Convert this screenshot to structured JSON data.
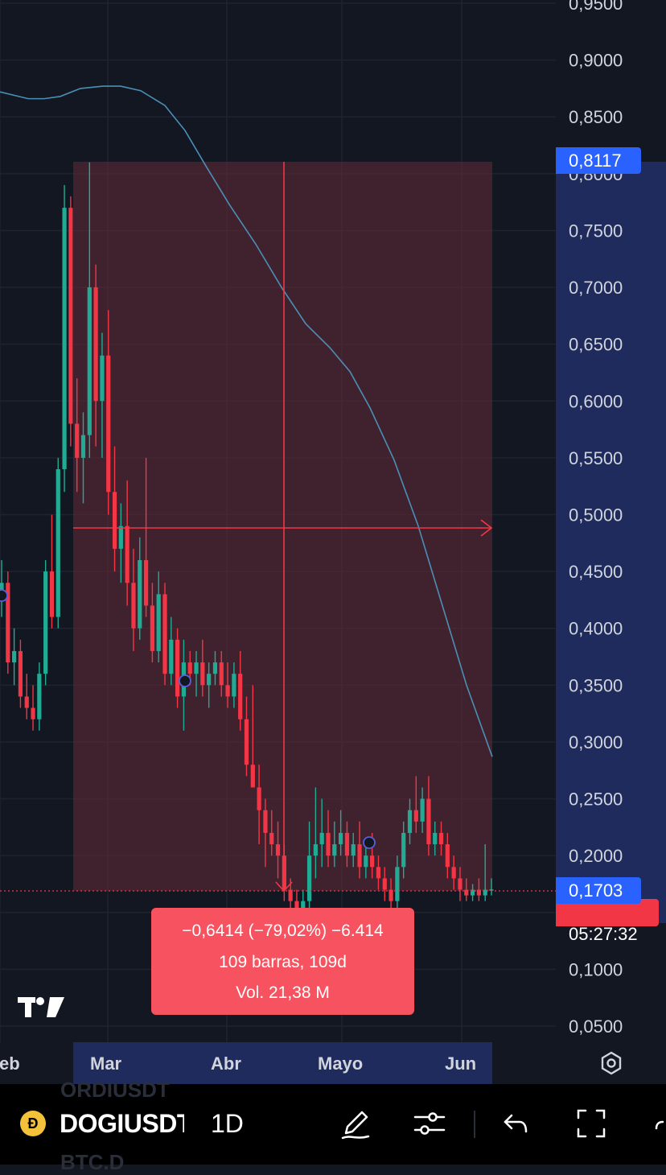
{
  "chart_data": {
    "type": "candlestick",
    "symbol": "DOGIUSDT",
    "interval": "1D",
    "y_axis_ticks": [
      "0,9500",
      "0,9000",
      "0,8500",
      "0,8000",
      "0,7500",
      "0,7000",
      "0,6500",
      "0,6000",
      "0,5500",
      "0,5000",
      "0,4500",
      "0,4000",
      "0,3500",
      "0,3000",
      "0,2500",
      "0,2000",
      "0,1500",
      "0,1000",
      "0,0500"
    ],
    "x_axis_ticks": [
      "eb",
      "Mar",
      "Abr",
      "Mayo",
      "Jun"
    ],
    "ylim": [
      0.03,
      0.97
    ],
    "current_price": "0,1703",
    "countdown": "05:27:32",
    "marker_price": "0,8117",
    "moving_average": [
      {
        "t": 0,
        "y": 0.872
      },
      {
        "t": 35,
        "y": 0.866
      },
      {
        "t": 55,
        "y": 0.866
      },
      {
        "t": 75,
        "y": 0.868
      },
      {
        "t": 100,
        "y": 0.875
      },
      {
        "t": 128,
        "y": 0.877
      },
      {
        "t": 150,
        "y": 0.877
      },
      {
        "t": 175,
        "y": 0.873
      },
      {
        "t": 205,
        "y": 0.86
      },
      {
        "t": 230,
        "y": 0.838
      },
      {
        "t": 255,
        "y": 0.808
      },
      {
        "t": 285,
        "y": 0.773
      },
      {
        "t": 318,
        "y": 0.738
      },
      {
        "t": 350,
        "y": 0.7
      },
      {
        "t": 380,
        "y": 0.668
      },
      {
        "t": 410,
        "y": 0.647
      },
      {
        "t": 435,
        "y": 0.626
      },
      {
        "t": 460,
        "y": 0.594
      },
      {
        "t": 490,
        "y": 0.548
      },
      {
        "t": 520,
        "y": 0.49
      },
      {
        "t": 550,
        "y": 0.42
      },
      {
        "t": 580,
        "y": 0.35
      },
      {
        "t": 612,
        "y": 0.287
      }
    ],
    "measurement": {
      "price_change": "−0,6414 (−79,02%) −6.414",
      "bars": "109 barras, 109d",
      "volume": "Vol. 21,38 M",
      "from_price": 0.8117,
      "to_price": 0.1703
    },
    "candles": [
      {
        "o": 0.43,
        "h": 0.46,
        "l": 0.41,
        "c": 0.44
      },
      {
        "o": 0.44,
        "h": 0.45,
        "l": 0.36,
        "c": 0.37
      },
      {
        "o": 0.37,
        "h": 0.4,
        "l": 0.35,
        "c": 0.38
      },
      {
        "o": 0.38,
        "h": 0.39,
        "l": 0.33,
        "c": 0.34
      },
      {
        "o": 0.34,
        "h": 0.36,
        "l": 0.32,
        "c": 0.33
      },
      {
        "o": 0.33,
        "h": 0.35,
        "l": 0.31,
        "c": 0.32
      },
      {
        "o": 0.32,
        "h": 0.37,
        "l": 0.31,
        "c": 0.36
      },
      {
        "o": 0.36,
        "h": 0.46,
        "l": 0.35,
        "c": 0.45
      },
      {
        "o": 0.45,
        "h": 0.5,
        "l": 0.4,
        "c": 0.41
      },
      {
        "o": 0.41,
        "h": 0.55,
        "l": 0.4,
        "c": 0.54
      },
      {
        "o": 0.54,
        "h": 0.79,
        "l": 0.52,
        "c": 0.77
      },
      {
        "o": 0.77,
        "h": 0.78,
        "l": 0.56,
        "c": 0.58
      },
      {
        "o": 0.58,
        "h": 0.62,
        "l": 0.52,
        "c": 0.55
      },
      {
        "o": 0.55,
        "h": 0.59,
        "l": 0.51,
        "c": 0.57
      },
      {
        "o": 0.57,
        "h": 0.81,
        "l": 0.55,
        "c": 0.7
      },
      {
        "o": 0.7,
        "h": 0.72,
        "l": 0.56,
        "c": 0.6
      },
      {
        "o": 0.6,
        "h": 0.66,
        "l": 0.55,
        "c": 0.64
      },
      {
        "o": 0.64,
        "h": 0.68,
        "l": 0.5,
        "c": 0.52
      },
      {
        "o": 0.52,
        "h": 0.56,
        "l": 0.45,
        "c": 0.47
      },
      {
        "o": 0.47,
        "h": 0.51,
        "l": 0.44,
        "c": 0.49
      },
      {
        "o": 0.49,
        "h": 0.53,
        "l": 0.42,
        "c": 0.44
      },
      {
        "o": 0.44,
        "h": 0.47,
        "l": 0.38,
        "c": 0.4
      },
      {
        "o": 0.4,
        "h": 0.48,
        "l": 0.39,
        "c": 0.46
      },
      {
        "o": 0.46,
        "h": 0.55,
        "l": 0.41,
        "c": 0.42
      },
      {
        "o": 0.42,
        "h": 0.44,
        "l": 0.37,
        "c": 0.38
      },
      {
        "o": 0.38,
        "h": 0.45,
        "l": 0.37,
        "c": 0.43
      },
      {
        "o": 0.43,
        "h": 0.44,
        "l": 0.35,
        "c": 0.36
      },
      {
        "o": 0.36,
        "h": 0.41,
        "l": 0.35,
        "c": 0.39
      },
      {
        "o": 0.39,
        "h": 0.4,
        "l": 0.33,
        "c": 0.34
      },
      {
        "o": 0.34,
        "h": 0.39,
        "l": 0.31,
        "c": 0.37
      },
      {
        "o": 0.37,
        "h": 0.38,
        "l": 0.35,
        "c": 0.36
      },
      {
        "o": 0.36,
        "h": 0.38,
        "l": 0.34,
        "c": 0.37
      },
      {
        "o": 0.37,
        "h": 0.39,
        "l": 0.34,
        "c": 0.35
      },
      {
        "o": 0.35,
        "h": 0.37,
        "l": 0.33,
        "c": 0.36
      },
      {
        "o": 0.36,
        "h": 0.38,
        "l": 0.35,
        "c": 0.37
      },
      {
        "o": 0.37,
        "h": 0.38,
        "l": 0.34,
        "c": 0.35
      },
      {
        "o": 0.35,
        "h": 0.37,
        "l": 0.33,
        "c": 0.34
      },
      {
        "o": 0.34,
        "h": 0.37,
        "l": 0.33,
        "c": 0.36
      },
      {
        "o": 0.36,
        "h": 0.38,
        "l": 0.31,
        "c": 0.32
      },
      {
        "o": 0.32,
        "h": 0.34,
        "l": 0.27,
        "c": 0.28
      },
      {
        "o": 0.28,
        "h": 0.35,
        "l": 0.26,
        "c": 0.26
      },
      {
        "o": 0.26,
        "h": 0.28,
        "l": 0.21,
        "c": 0.24
      },
      {
        "o": 0.24,
        "h": 0.25,
        "l": 0.19,
        "c": 0.22
      },
      {
        "o": 0.22,
        "h": 0.24,
        "l": 0.2,
        "c": 0.21
      },
      {
        "o": 0.21,
        "h": 0.23,
        "l": 0.18,
        "c": 0.2
      },
      {
        "o": 0.2,
        "h": 0.21,
        "l": 0.16,
        "c": 0.17
      },
      {
        "o": 0.17,
        "h": 0.18,
        "l": 0.15,
        "c": 0.16
      },
      {
        "o": 0.16,
        "h": 0.17,
        "l": 0.14,
        "c": 0.15
      },
      {
        "o": 0.15,
        "h": 0.17,
        "l": 0.15,
        "c": 0.16
      },
      {
        "o": 0.16,
        "h": 0.23,
        "l": 0.15,
        "c": 0.2
      },
      {
        "o": 0.2,
        "h": 0.26,
        "l": 0.18,
        "c": 0.21
      },
      {
        "o": 0.21,
        "h": 0.25,
        "l": 0.19,
        "c": 0.22
      },
      {
        "o": 0.22,
        "h": 0.24,
        "l": 0.19,
        "c": 0.2
      },
      {
        "o": 0.2,
        "h": 0.23,
        "l": 0.19,
        "c": 0.21
      },
      {
        "o": 0.21,
        "h": 0.24,
        "l": 0.2,
        "c": 0.22
      },
      {
        "o": 0.22,
        "h": 0.23,
        "l": 0.19,
        "c": 0.2
      },
      {
        "o": 0.2,
        "h": 0.22,
        "l": 0.19,
        "c": 0.21
      },
      {
        "o": 0.21,
        "h": 0.23,
        "l": 0.18,
        "c": 0.19
      },
      {
        "o": 0.19,
        "h": 0.21,
        "l": 0.18,
        "c": 0.2
      },
      {
        "o": 0.2,
        "h": 0.22,
        "l": 0.18,
        "c": 0.19
      },
      {
        "o": 0.19,
        "h": 0.2,
        "l": 0.17,
        "c": 0.18
      },
      {
        "o": 0.18,
        "h": 0.19,
        "l": 0.16,
        "c": 0.17
      },
      {
        "o": 0.17,
        "h": 0.18,
        "l": 0.15,
        "c": 0.16
      },
      {
        "o": 0.16,
        "h": 0.2,
        "l": 0.15,
        "c": 0.19
      },
      {
        "o": 0.19,
        "h": 0.23,
        "l": 0.18,
        "c": 0.22
      },
      {
        "o": 0.22,
        "h": 0.25,
        "l": 0.21,
        "c": 0.24
      },
      {
        "o": 0.24,
        "h": 0.27,
        "l": 0.22,
        "c": 0.23
      },
      {
        "o": 0.23,
        "h": 0.26,
        "l": 0.22,
        "c": 0.25
      },
      {
        "o": 0.25,
        "h": 0.27,
        "l": 0.2,
        "c": 0.21
      },
      {
        "o": 0.21,
        "h": 0.23,
        "l": 0.2,
        "c": 0.22
      },
      {
        "o": 0.22,
        "h": 0.23,
        "l": 0.2,
        "c": 0.21
      },
      {
        "o": 0.21,
        "h": 0.22,
        "l": 0.18,
        "c": 0.19
      },
      {
        "o": 0.19,
        "h": 0.2,
        "l": 0.17,
        "c": 0.18
      },
      {
        "o": 0.18,
        "h": 0.19,
        "l": 0.16,
        "c": 0.17
      },
      {
        "o": 0.17,
        "h": 0.18,
        "l": 0.16,
        "c": 0.165
      },
      {
        "o": 0.165,
        "h": 0.175,
        "l": 0.16,
        "c": 0.17
      },
      {
        "o": 0.17,
        "h": 0.18,
        "l": 0.16,
        "c": 0.165
      },
      {
        "o": 0.165,
        "h": 0.21,
        "l": 0.16,
        "c": 0.17
      },
      {
        "o": 0.17,
        "h": 0.18,
        "l": 0.165,
        "c": 0.1703
      }
    ]
  },
  "toolbar": {
    "symbol": "DOGIUSDT",
    "interval": "1D",
    "ghost_top": "ORDIUSDT",
    "ghost_bottom": "BTC.D"
  }
}
